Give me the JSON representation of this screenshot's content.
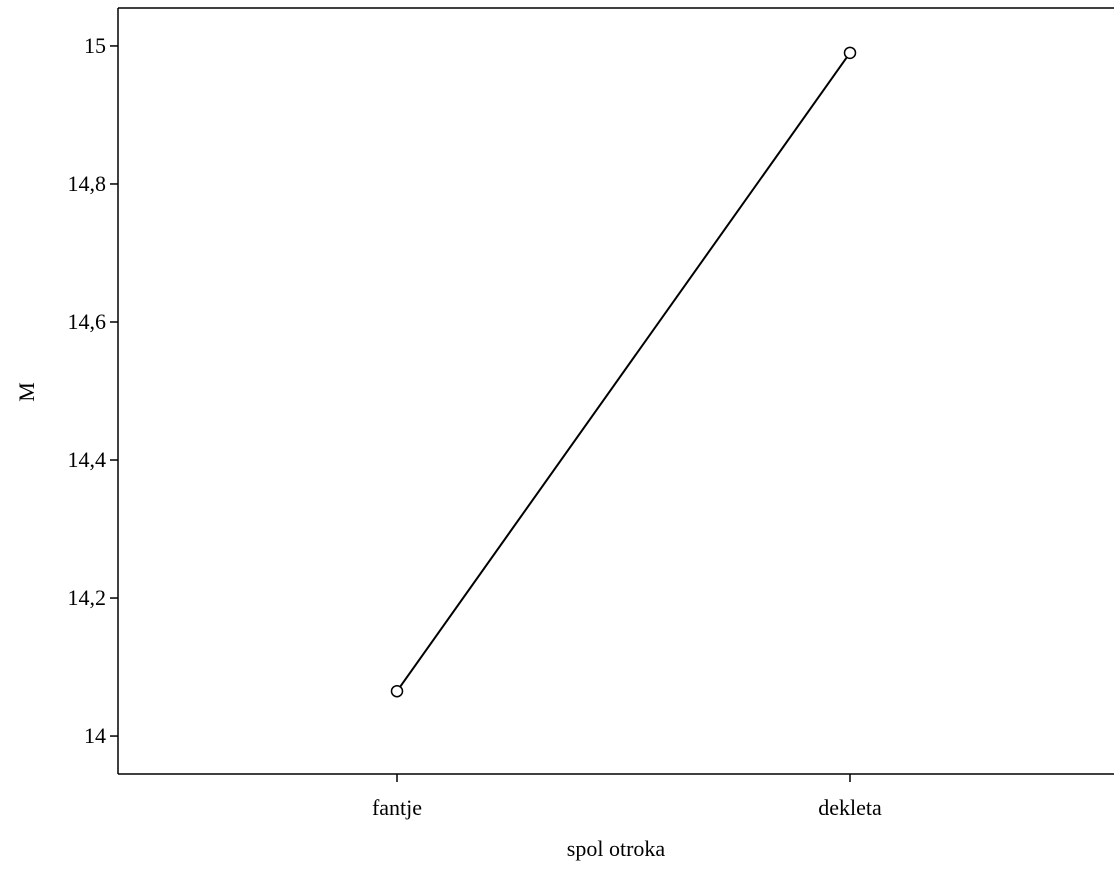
{
  "chart_data": {
    "type": "line",
    "title": "",
    "xlabel": "spol otroka",
    "ylabel": "M",
    "categories": [
      "fantje",
      "dekleta"
    ],
    "series": [
      {
        "values": [
          14.065,
          14.99
        ],
        "color": "#000000",
        "marker": "circle-open"
      }
    ],
    "ylim": [
      13.945,
      15.055
    ],
    "yticks": [
      14,
      14.2,
      14.4,
      14.6,
      14.8,
      15
    ],
    "ytick_labels": [
      "14",
      "14,2",
      "14,4",
      "14,6",
      "14,8",
      "15"
    ],
    "grid": false,
    "legend": "none"
  }
}
